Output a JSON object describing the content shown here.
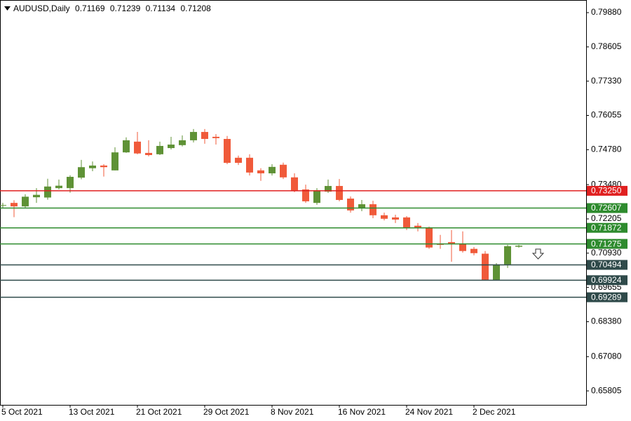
{
  "chart_data": {
    "type": "candlestick",
    "symbol": "AUDUSD,Daily",
    "header_ohlc": [
      0.71169,
      0.71239,
      0.71134,
      0.71208
    ],
    "categories": [
      "5 Oct 2021",
      null,
      null,
      null,
      null,
      null,
      "13 Oct 2021",
      null,
      null,
      null,
      null,
      null,
      "21 Oct 2021",
      null,
      null,
      null,
      null,
      null,
      "29 Oct 2021",
      null,
      null,
      null,
      null,
      null,
      "8 Nov 2021",
      null,
      null,
      null,
      null,
      null,
      "16 Nov 2021",
      null,
      null,
      null,
      null,
      null,
      "24 Nov 2021",
      null,
      null,
      null,
      null,
      null,
      "2 Dec 2021",
      null,
      null,
      null,
      null
    ],
    "open": [
      0.7271,
      0.728,
      0.7267,
      0.7301,
      0.73,
      0.7335,
      0.7335,
      0.7374,
      0.7409,
      0.7419,
      0.7401,
      0.7468,
      0.7508,
      0.7466,
      0.7461,
      0.7484,
      0.7495,
      0.7513,
      0.7544,
      0.7526,
      0.7518,
      0.7448,
      0.7448,
      0.7401,
      0.739,
      0.7422,
      0.7375,
      0.733,
      0.728,
      0.7322,
      0.7343,
      0.7296,
      0.726,
      0.7275,
      0.7234,
      0.7226,
      0.7226,
      0.7195,
      0.7187,
      0.7129,
      0.7134,
      0.7129,
      0.7109,
      0.7091,
      0.6994,
      0.7051,
      0.71169
    ],
    "high": [
      0.728,
      0.729,
      0.7312,
      0.7335,
      0.737,
      0.7367,
      0.7383,
      0.744,
      0.7434,
      0.7424,
      0.7487,
      0.7524,
      0.7544,
      0.7513,
      0.7508,
      0.7526,
      0.7531,
      0.7555,
      0.7555,
      0.7536,
      0.7529,
      0.7456,
      0.7461,
      0.7409,
      0.7424,
      0.743,
      0.739,
      0.7348,
      0.7335,
      0.7367,
      0.7369,
      0.7304,
      0.7291,
      0.7288,
      0.7244,
      0.7236,
      0.7231,
      0.7205,
      0.7192,
      0.7161,
      0.7179,
      0.7174,
      0.7116,
      0.7101,
      0.7056,
      0.7124,
      0.71239
    ],
    "low": [
      0.7262,
      0.7227,
      0.7262,
      0.728,
      0.7292,
      0.733,
      0.7318,
      0.7368,
      0.7398,
      0.7378,
      0.7401,
      0.7466,
      0.7461,
      0.7453,
      0.7458,
      0.7479,
      0.749,
      0.7505,
      0.75,
      0.7497,
      0.7424,
      0.7421,
      0.7382,
      0.7362,
      0.7382,
      0.7369,
      0.732,
      0.728,
      0.7273,
      0.7317,
      0.7286,
      0.7244,
      0.7249,
      0.7223,
      0.7215,
      0.7205,
      0.7179,
      0.7174,
      0.7109,
      0.7109,
      0.7061,
      0.7095,
      0.7085,
      0.6991,
      0.6991,
      0.7038,
      0.71134
    ],
    "close": [
      0.7272,
      0.7267,
      0.7303,
      0.731,
      0.7341,
      0.7344,
      0.7377,
      0.7413,
      0.7419,
      0.7413,
      0.7468,
      0.7513,
      0.7464,
      0.7458,
      0.7492,
      0.7497,
      0.7513,
      0.7544,
      0.7518,
      0.7521,
      0.7429,
      0.7429,
      0.7393,
      0.739,
      0.7414,
      0.7375,
      0.7325,
      0.7286,
      0.7327,
      0.7343,
      0.7291,
      0.7252,
      0.7275,
      0.7234,
      0.7221,
      0.7218,
      0.7187,
      0.7187,
      0.7114,
      0.7124,
      0.7129,
      0.7101,
      0.7093,
      0.6994,
      0.7051,
      0.7119,
      0.71208
    ],
    "up_color": "#5f9236",
    "down_color": "#f05a3a",
    "ylim": [
      0.65285,
      0.8035
    ],
    "yticks": [
      {
        "value": 0.7988,
        "label": "0.79880"
      },
      0.78605,
      {
        "value": 0.7733,
        "label": "0.77330"
      },
      0.76055,
      {
        "value": 0.7478,
        "label": "0.74780"
      },
      {
        "value": 0.7348,
        "label": "0.73480"
      },
      0.72205,
      {
        "value": 0.7093,
        "label": "0.70930"
      },
      0.69655,
      {
        "value": 0.6838,
        "label": "0.68380"
      },
      {
        "value": 0.6708,
        "label": "0.67080"
      },
      0.65805
    ],
    "levels": [
      {
        "value": 0.7325,
        "label": "0.73250",
        "color": "#e02020"
      },
      {
        "value": 0.72607,
        "color": "#2e8b2e"
      },
      {
        "value": 0.71872,
        "color": "#2e8b2e"
      },
      {
        "value": 0.71275,
        "color": "#2e8b2e"
      },
      {
        "value": 0.70494,
        "color": "#2f4a4a"
      },
      {
        "value": 0.69924,
        "color": "#2f4a4a"
      },
      {
        "value": 0.69289,
        "color": "#2f4a4a"
      }
    ]
  }
}
